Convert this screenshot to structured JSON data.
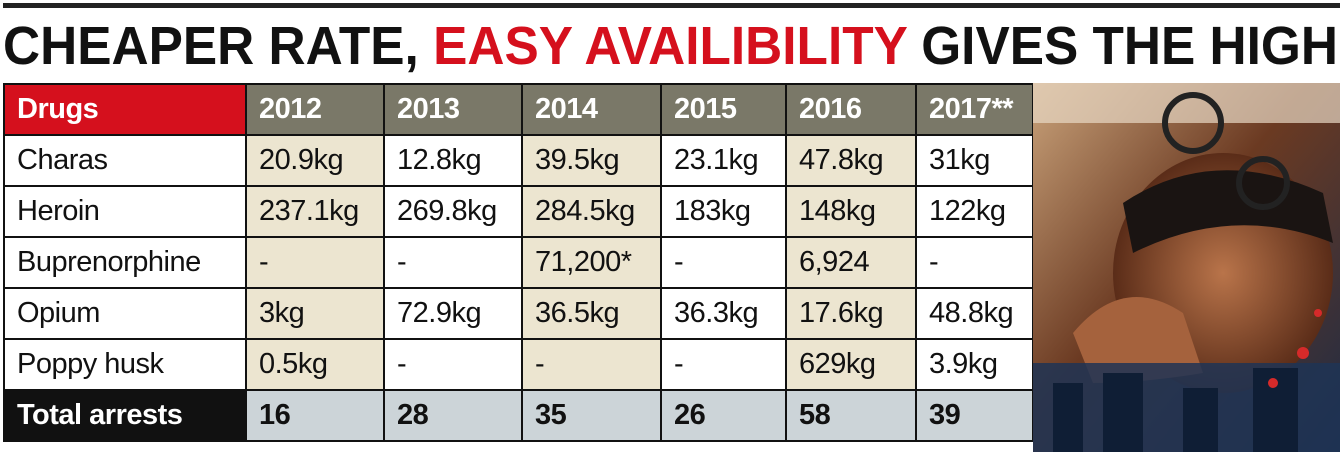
{
  "header": {
    "title": [
      "CHEAPER RATE,",
      "EASY AVAILIBILITY",
      "GIVES THE HIGH"
    ]
  },
  "table": {
    "columns": [
      "Drugs",
      "2012",
      "2013",
      "2014",
      "2015",
      "2016",
      "2017**"
    ],
    "rows": [
      [
        "Charas",
        "20.9kg",
        "12.8kg",
        "39.5kg",
        "23.1kg",
        "47.8kg",
        "31kg"
      ],
      [
        "Heroin",
        "237.1kg",
        "269.8kg",
        "284.5kg",
        "183kg",
        "148kg",
        "122kg"
      ],
      [
        "Buprenorphine",
        "-",
        "-",
        "71,200*",
        "-",
        "6,924",
        "-"
      ],
      [
        "Opium",
        "3kg",
        "72.9kg",
        "36.5kg",
        "36.3kg",
        "17.6kg",
        "48.8kg"
      ],
      [
        "Poppy husk",
        "0.5kg",
        "-",
        "-",
        "-",
        "629kg",
        "3.9kg"
      ]
    ],
    "total": [
      "Total arrests",
      "16",
      "28",
      "35",
      "26",
      "58",
      "39"
    ]
  }
}
